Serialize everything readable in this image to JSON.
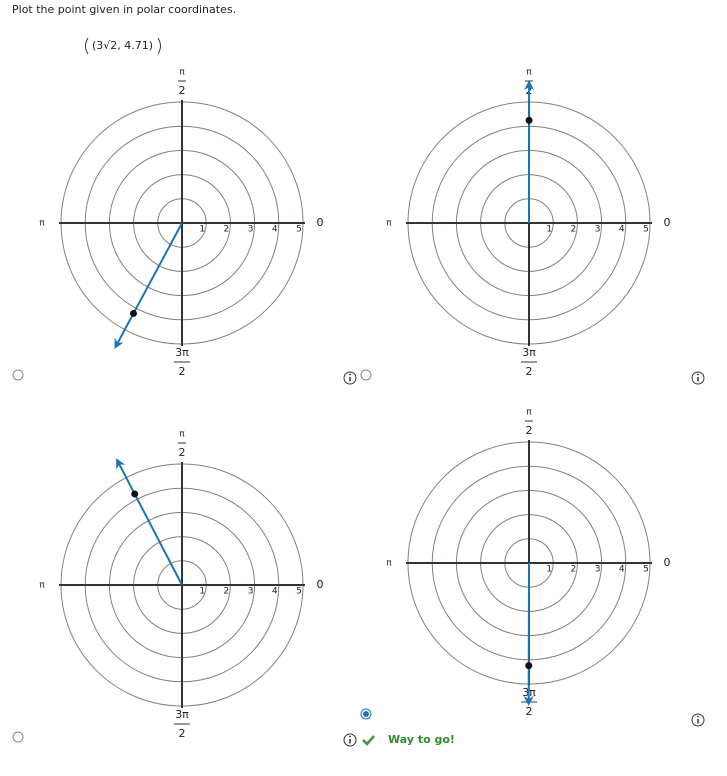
{
  "question": "Plot the point given in polar coordinates.",
  "point_label": "(3√2, 4.71)",
  "rlim": [
    0,
    5
  ],
  "rticks": [
    1,
    2,
    3,
    4,
    5
  ],
  "angle_labels": {
    "zero": "0",
    "pi": "π",
    "half_pi": {
      "num": "π",
      "den": "2"
    },
    "three_half_pi": {
      "num": "3π",
      "den": "2"
    }
  },
  "options": [
    {
      "point": {
        "r": 4.24,
        "theta": 4.22
      },
      "selected": false
    },
    {
      "point": {
        "r": 4.24,
        "theta": 1.57
      },
      "selected": false
    },
    {
      "point": {
        "r": 4.24,
        "theta": 2.05
      },
      "selected": false
    },
    {
      "point": {
        "r": 4.24,
        "theta": 4.71
      },
      "selected": true
    }
  ],
  "feedback": "Way to go!"
}
